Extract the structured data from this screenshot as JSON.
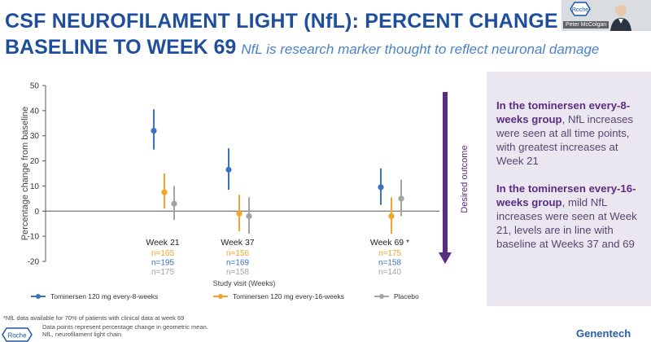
{
  "slide": {
    "title_line1": "CSF NEUROFILAMENT LIGHT (NfL): PERCENT CHANGE FROM",
    "title_line2": "BASELINE TO WEEK 69",
    "subtitle": "NfL is research marker thought to reflect neuronal damage"
  },
  "video": {
    "presenter_name": "Peter McColgan",
    "logo_text": "Roche"
  },
  "chart_data": {
    "type": "scatter",
    "ylabel": "Percentage change from baseline",
    "xlabel": "Study visit (Weeks)",
    "ylim": [
      -20,
      50
    ],
    "yticks": [
      50,
      40,
      30,
      20,
      10,
      0,
      -10,
      -20
    ],
    "categories": [
      "Week 21",
      "Week 37",
      "Week 69"
    ],
    "category_marker": [
      "",
      "",
      " *"
    ],
    "series": [
      {
        "name": "Tominersen 120 mg every-8-weeks",
        "color": "#3b72c4",
        "values": [
          32,
          16.5,
          9.5
        ],
        "lower": [
          24.5,
          8.5,
          2.5
        ],
        "upper": [
          40.5,
          25,
          17
        ],
        "n": [
          "n=195",
          "n=169",
          "n=158"
        ]
      },
      {
        "name": "Tominersen 120 mg every-16-weeks",
        "color": "#f5a32a",
        "values": [
          7.5,
          -1,
          -2
        ],
        "lower": [
          1,
          -8,
          -9
        ],
        "upper": [
          15,
          6.5,
          5.5
        ],
        "n": [
          "n=165",
          "n=156",
          "n=175"
        ]
      },
      {
        "name": "Placebo",
        "color": "#a3a3a3",
        "values": [
          3,
          -2,
          5
        ],
        "lower": [
          -3.5,
          -9,
          -2
        ],
        "upper": [
          10,
          5.5,
          12.5
        ],
        "n": [
          "n=175",
          "n=158",
          "n=140"
        ]
      }
    ],
    "n_order": [
      1,
      0,
      2
    ],
    "annotation": "Desired outcome",
    "annotation_color": "#5a2d82"
  },
  "side_panel": {
    "para1_bold": "In the tominersen every-8-weeks group",
    "para1_rest": ", NfL increases were seen at all time points, with greatest increases at Week 21",
    "para2_bold": "In the tominersen every-16-weeks group",
    "para2_rest": ", mild NfL increases were seen at Week 21, levels are in line with baseline at Weeks 37 and 69"
  },
  "footer": {
    "footnote": "*NfL data available for 70% of patients with clinical data at week 69",
    "note1": "Data points represent percentage change in geometric mean.",
    "note2": "NfL, neurofilament light chain",
    "logo_left": "Roche",
    "logo_right": "Genentech"
  }
}
